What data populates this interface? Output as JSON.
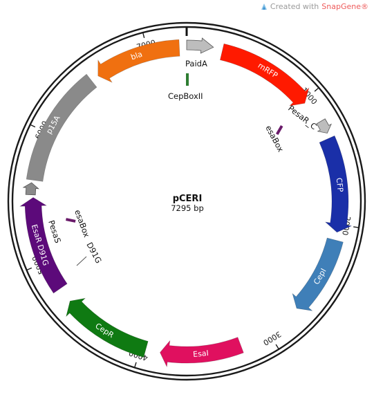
{
  "credit": {
    "text": "Created with",
    "brand": "SnapGene®"
  },
  "plasmid": {
    "name": "pCERI",
    "length_label": "7295 bp",
    "length_bp": 7295
  },
  "ticks": [
    {
      "bp": 1000,
      "label": "1000"
    },
    {
      "bp": 2000,
      "label": "2000"
    },
    {
      "bp": 3000,
      "label": "3000"
    },
    {
      "bp": 4000,
      "label": "4000"
    },
    {
      "bp": 5000,
      "label": "5000"
    },
    {
      "bp": 6000,
      "label": "6000"
    },
    {
      "bp": 7000,
      "label": "7000"
    }
  ],
  "features": [
    {
      "id": "mrfp",
      "label": "mRFP",
      "start": 270,
      "end": 1020,
      "strand": 1,
      "color": "#ff1a00"
    },
    {
      "id": "cfp",
      "label": "CFP",
      "start": 1340,
      "end": 2060,
      "strand": 1,
      "color": "#1a2fa8"
    },
    {
      "id": "cepi",
      "label": "CepI",
      "start": 2120,
      "end": 2720,
      "strand": 1,
      "color": "#3f7fb8"
    },
    {
      "id": "esai",
      "label": "EsaI",
      "start": 3230,
      "end": 3850,
      "strand": 1,
      "color": "#e0105f"
    },
    {
      "id": "cepr",
      "label": "CepR",
      "start": 3960,
      "end": 4650,
      "strand": 1,
      "color": "#0f7a12"
    },
    {
      "id": "esar",
      "label": "EsaR D91G",
      "start": 4770,
      "end": 5500,
      "strand": 1,
      "color": "#5c0a7a"
    },
    {
      "id": "p15a",
      "label": "p15A",
      "start": 5630,
      "end": 6520,
      "strand": 0,
      "color": "#8a8a8a"
    },
    {
      "id": "bla",
      "label": "bla",
      "start": 6580,
      "end": 7240,
      "strand": -1,
      "color": "#f07010"
    }
  ],
  "promoters": [
    {
      "id": "paida",
      "label": "PaidA",
      "start": 0,
      "end": 200,
      "color": "#bdbdbd"
    },
    {
      "id": "pesar-c",
      "label": "PesaR_C",
      "start": 1200,
      "end": 1300,
      "color": "#bdbdbd"
    },
    {
      "id": "pesas",
      "label": "PesaS",
      "start": 5520,
      "end": 5610,
      "color": "#8a8a8a"
    }
  ],
  "boxes": [
    {
      "id": "cepbox",
      "label": "CepBoxII",
      "color": "#2e7d32"
    },
    {
      "id": "esabox-c",
      "label": "esaBox",
      "color": "#6a1b6a"
    },
    {
      "id": "esabox-s",
      "label": "esaBox",
      "color": "#6a1b6a"
    }
  ],
  "annotations": [
    {
      "id": "d91g",
      "label": "D91G"
    }
  ]
}
